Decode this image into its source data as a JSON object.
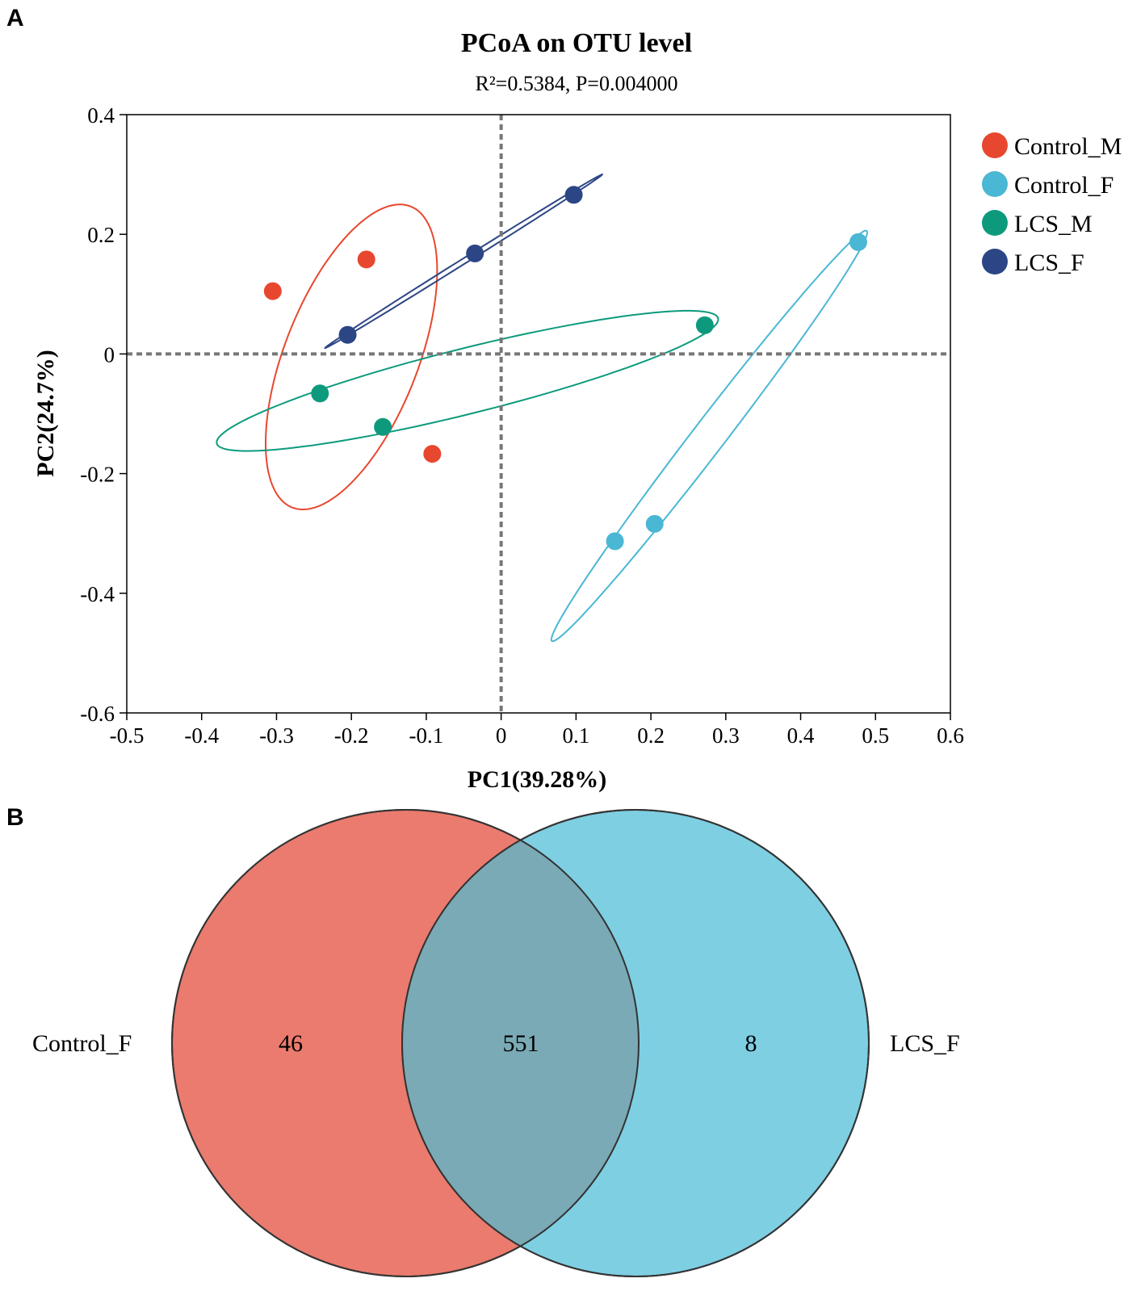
{
  "panels": {
    "a": "A",
    "b": "B"
  },
  "chart_data": [
    {
      "type": "scatter",
      "title": "PCoA on OTU level",
      "subtitle": "R²=0.5384, P=0.004000",
      "xlabel": "PC1(39.28%)",
      "ylabel": "PC2(24.7%)",
      "xlim": [
        -0.5,
        0.6
      ],
      "ylim": [
        -0.6,
        0.4
      ],
      "x_ticks": [
        -0.5,
        -0.4,
        -0.3,
        -0.2,
        -0.1,
        0,
        0.1,
        0.2,
        0.3,
        0.4,
        0.5,
        0.6
      ],
      "y_ticks": [
        0.4,
        0.2,
        0,
        -0.2,
        -0.4,
        -0.6
      ],
      "reference_lines": {
        "x": 0,
        "y": 0
      },
      "legend_position": "right",
      "series": [
        {
          "name": "Control_M",
          "color": "#e8472f",
          "points": [
            [
              -0.305,
              0.105
            ],
            [
              -0.18,
              0.158
            ],
            [
              -0.092,
              -0.167
            ]
          ],
          "ellipse": {
            "center": [
              -0.2,
              -0.005
            ],
            "half_axis_major": [
              0.082,
              0.25
            ],
            "half_axis_minor": [
              0.08,
              -0.05
            ]
          }
        },
        {
          "name": "Control_F",
          "color": "#4ab7d4",
          "points": [
            [
              0.152,
              -0.313
            ],
            [
              0.205,
              -0.284
            ],
            [
              0.477,
              0.187
            ]
          ],
          "ellipse": {
            "center": [
              0.278,
              -0.137
            ],
            "half_axis_major": [
              0.21,
              0.343
            ],
            "half_axis_minor": [
              0.02,
              -0.012
            ]
          }
        },
        {
          "name": "LCS_M",
          "color": "#0d9a7c",
          "points": [
            [
              -0.242,
              -0.066
            ],
            [
              -0.158,
              -0.122
            ],
            [
              0.272,
              0.048
            ]
          ],
          "ellipse": {
            "center": [
              -0.045,
              -0.045
            ],
            "half_axis_major": [
              0.335,
              0.1035
            ],
            "half_axis_minor": [
              -0.004,
              0.055
            ]
          }
        },
        {
          "name": "LCS_F",
          "color": "#2c4585",
          "points": [
            [
              -0.205,
              0.032
            ],
            [
              -0.035,
              0.168
            ],
            [
              0.097,
              0.266
            ]
          ],
          "ellipse": {
            "center": [
              -0.05,
              0.155
            ],
            "half_axis_major": [
              0.185,
              0.145
            ],
            "half_axis_minor": [
              0.0025,
              -0.0032
            ]
          }
        }
      ]
    },
    {
      "type": "venn",
      "sets": [
        {
          "name": "Control_F",
          "color": "#ea7b6e",
          "unique": "46"
        },
        {
          "name": "LCS_F",
          "color": "#7ecfe2",
          "unique": "8"
        }
      ],
      "intersection": {
        "value": "551",
        "color": "#7aaab5"
      }
    }
  ]
}
